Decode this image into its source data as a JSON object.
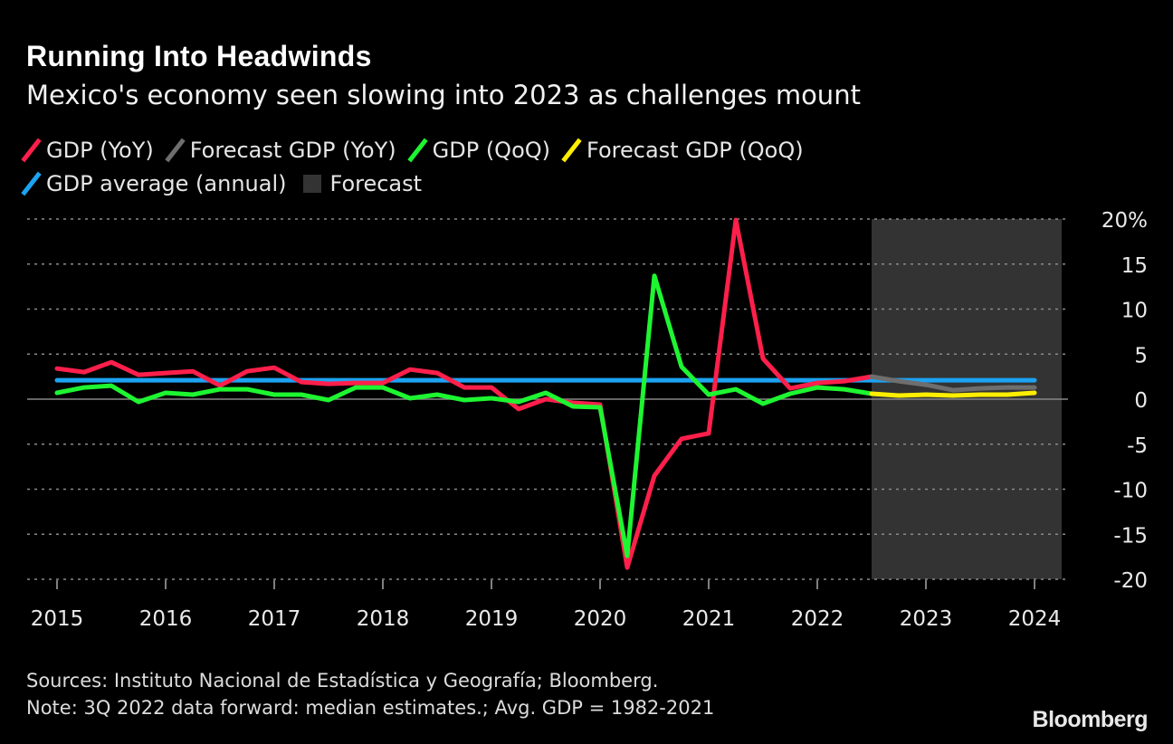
{
  "header": {
    "title": "Running Into Headwinds",
    "subtitle": "Mexico's economy seen slowing into 2023 as challenges mount"
  },
  "legend": [
    {
      "label": "GDP (YoY)",
      "color": "#ff1f4b",
      "type": "line"
    },
    {
      "label": "Forecast GDP (YoY)",
      "color": "#6e6e6e",
      "type": "line"
    },
    {
      "label": "GDP (QoQ)",
      "color": "#1ef531",
      "type": "line"
    },
    {
      "label": "Forecast GDP (QoQ)",
      "color": "#ffee00",
      "type": "line"
    },
    {
      "label": "GDP average (annual)",
      "color": "#1ca3f2",
      "type": "line"
    },
    {
      "label": "Forecast",
      "color": "#333333",
      "type": "box"
    }
  ],
  "footer": {
    "sources": "Sources: Instituto Nacional de Estadística y Geografía; Bloomberg.",
    "note": "Note: 3Q 2022 data forward: median estimates.; Avg. GDP = 1982-2021",
    "logo": "Bloomberg"
  },
  "chart_data": {
    "type": "line",
    "title": "Running Into Headwinds",
    "subtitle": "Mexico's economy seen slowing into 2023 as challenges mount",
    "x_start": "2015 Q1",
    "x_step": "quarter",
    "xlim": [
      2015,
      2024.25
    ],
    "ylim": [
      -20,
      20
    ],
    "x_ticks": [
      "2015",
      "2016",
      "2017",
      "2018",
      "2019",
      "2020",
      "2021",
      "2022",
      "2023",
      "2024"
    ],
    "y_ticks": [
      "20%",
      "15",
      "10",
      "5",
      "0",
      "-5",
      "-10",
      "-15",
      "-20"
    ],
    "y_tick_values": [
      20,
      15,
      10,
      5,
      0,
      -5,
      -10,
      -15,
      -20
    ],
    "y_axis_side": "right",
    "grid": "dotted horizontal",
    "legend_position": "top",
    "forecast_region": {
      "label": "Forecast",
      "from": "2022 Q3",
      "to": "2024 Q1"
    },
    "series": [
      {
        "name": "GDP (YoY)",
        "color": "#ff1f4b",
        "start": "2015 Q1",
        "values": [
          3.4,
          3.0,
          4.1,
          2.7,
          2.9,
          3.1,
          1.5,
          3.1,
          3.5,
          1.9,
          1.7,
          1.8,
          1.8,
          3.3,
          2.9,
          1.3,
          1.3,
          -1.1,
          0.0,
          -0.4,
          -0.6,
          -18.7,
          -8.5,
          -4.4,
          -3.8,
          19.9,
          4.5,
          1.2,
          1.8,
          2.0,
          2.5
        ]
      },
      {
        "name": "Forecast GDP (YoY)",
        "color": "#6e6e6e",
        "start": "2022 Q3",
        "values": [
          2.5,
          2.0,
          1.6,
          1.0,
          1.2,
          1.3,
          1.3
        ]
      },
      {
        "name": "GDP (QoQ)",
        "color": "#1ef531",
        "start": "2015 Q1",
        "values": [
          0.7,
          1.3,
          1.5,
          -0.3,
          0.7,
          0.5,
          1.1,
          1.1,
          0.5,
          0.5,
          -0.1,
          1.3,
          1.3,
          0.1,
          0.5,
          -0.1,
          0.1,
          -0.3,
          0.7,
          -0.8,
          -0.9,
          -17.4,
          13.7,
          3.6,
          0.5,
          1.1,
          -0.5,
          0.6,
          1.3,
          1.1,
          0.6
        ]
      },
      {
        "name": "Forecast GDP (QoQ)",
        "color": "#ffee00",
        "start": "2022 Q3",
        "values": [
          0.6,
          0.4,
          0.5,
          0.4,
          0.5,
          0.5,
          0.7
        ]
      },
      {
        "name": "GDP average (annual)",
        "color": "#1ca3f2",
        "start": "2015 Q1",
        "values": [
          2.1,
          2.1,
          2.1,
          2.1,
          2.1,
          2.1,
          2.1,
          2.1,
          2.1,
          2.1,
          2.1,
          2.1,
          2.1,
          2.1,
          2.1,
          2.1,
          2.1,
          2.1,
          2.1,
          2.1,
          2.1,
          2.1,
          2.1,
          2.1,
          2.1,
          2.1,
          2.1,
          2.1,
          2.1,
          2.1,
          2.1,
          2.1,
          2.1,
          2.1,
          2.1,
          2.1,
          2.1
        ]
      }
    ]
  }
}
